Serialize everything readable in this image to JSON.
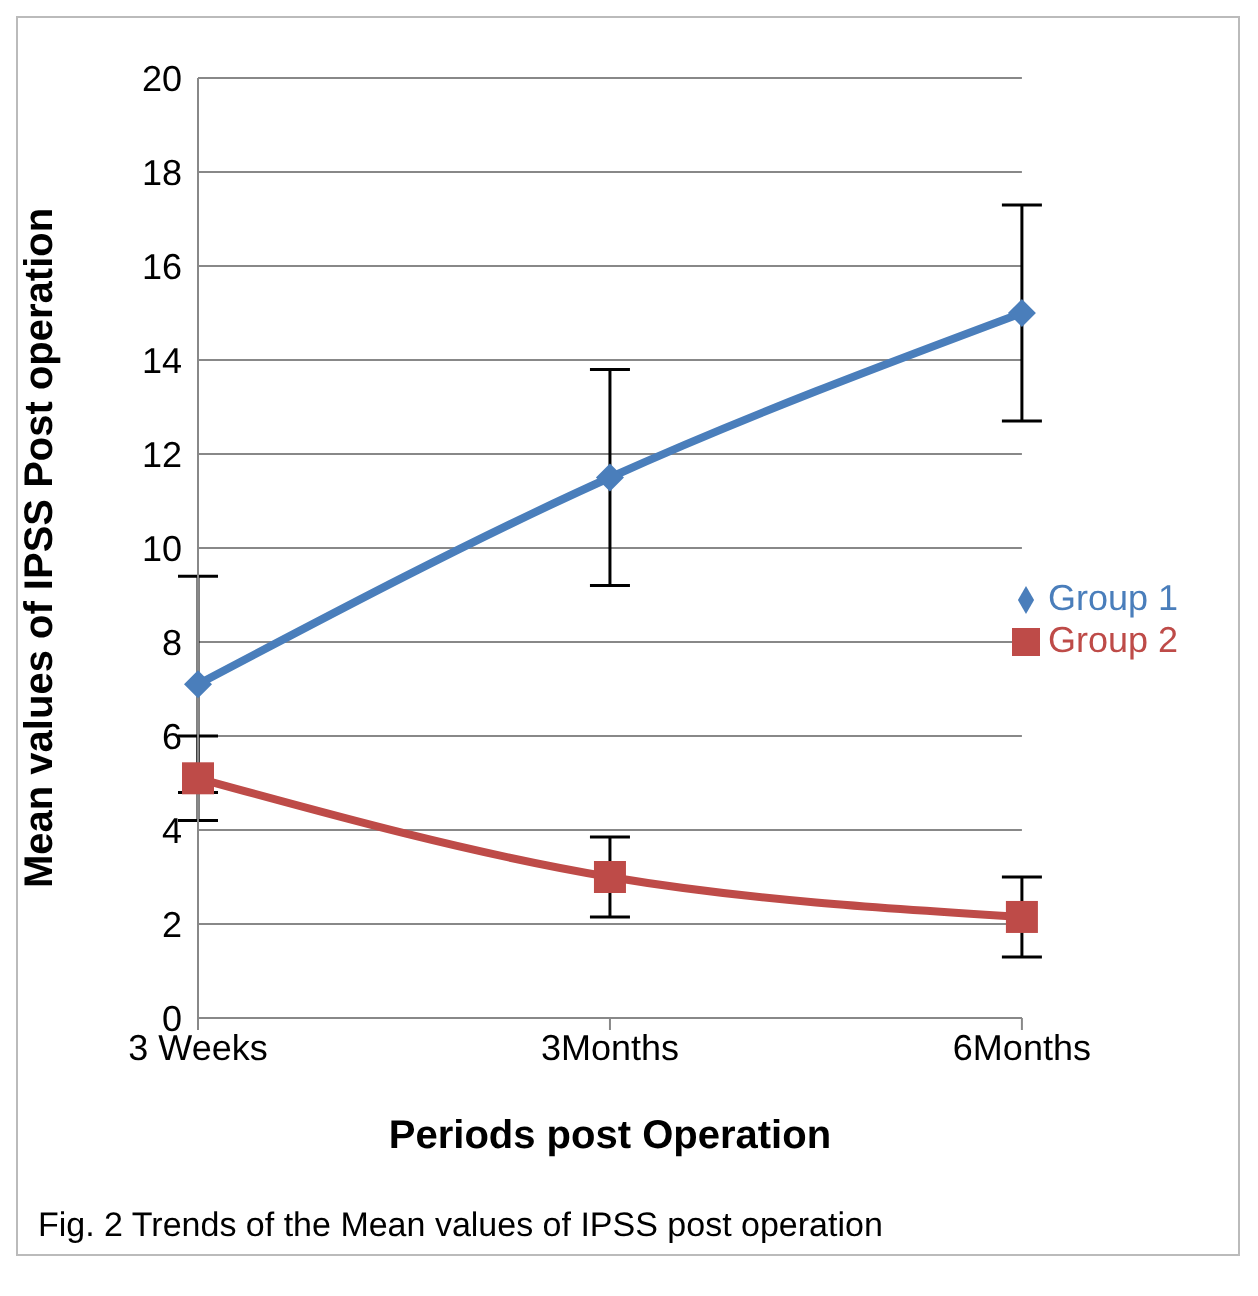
{
  "chart_data": {
    "type": "line",
    "xlabel": "Periods post Operation",
    "ylabel": "Mean values of IPSS Post operation",
    "categories": [
      "3 Weeks",
      "3Months",
      "6Months"
    ],
    "series": [
      {
        "name": "Group 1",
        "color": "#4a7ebb",
        "marker": "diamond",
        "values": [
          7.1,
          11.5,
          15
        ],
        "errors": [
          2.3,
          2.3,
          2.3
        ]
      },
      {
        "name": "Group 2",
        "color": "#be4b48",
        "marker": "square",
        "values": [
          5.1,
          3.0,
          2.15
        ],
        "errors": [
          0.9,
          0.85,
          0.85
        ]
      }
    ],
    "ylim": [
      0,
      20
    ],
    "yticks": [
      0,
      2,
      4,
      6,
      8,
      10,
      12,
      14,
      16,
      18,
      20
    ],
    "grid": "y",
    "legend": "right",
    "annotations": [
      "Fig. 2  Trends of the Mean values of IPSS post operation"
    ]
  }
}
